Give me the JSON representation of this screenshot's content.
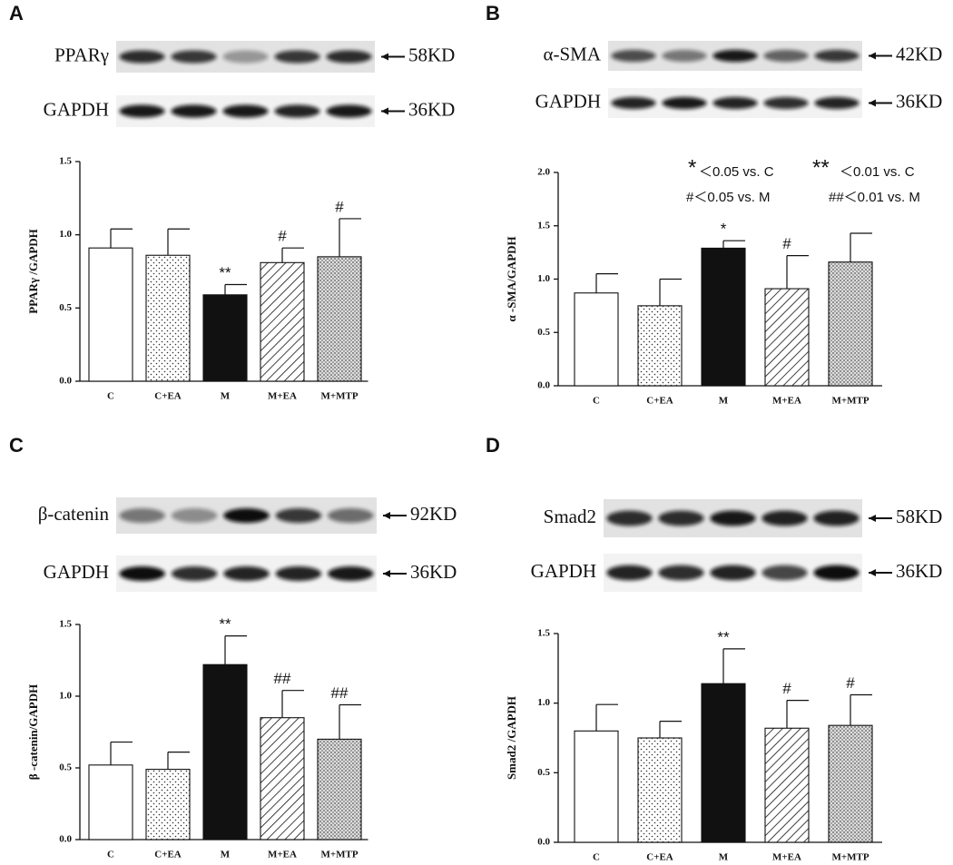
{
  "chart_data": [
    {
      "type": "bar",
      "panel_label": "A",
      "blots": [
        {
          "protein": "PPARγ",
          "size": "58KD"
        },
        {
          "protein": "GAPDH",
          "size": "36KD"
        }
      ],
      "y_label": "PPARγ /GAPDH",
      "categories": [
        "C",
        "C+EA",
        "M",
        "M+EA",
        "M+MTP"
      ],
      "values": [
        0.91,
        0.86,
        0.59,
        0.81,
        0.85
      ],
      "errors": [
        0.13,
        0.18,
        0.07,
        0.1,
        0.26
      ],
      "annotations": [
        null,
        null,
        "**",
        "#",
        "#"
      ],
      "fills": [
        "white",
        "dotted",
        "black",
        "hatched",
        "stippled"
      ],
      "ylim": [
        0,
        1.5
      ],
      "yticks": [
        {
          "value": 0,
          "label": "0.0"
        },
        0.5,
        {
          "value": 1,
          "label": "1.0"
        },
        1.5
      ]
    },
    {
      "type": "bar",
      "panel_label": "B",
      "blots": [
        {
          "protein": "α-SMA",
          "size": "42KD"
        },
        {
          "protein": "GAPDH",
          "size": "36KD"
        }
      ],
      "y_label": "α -SMA/GAPDH",
      "categories": [
        "C",
        "C+EA",
        "M",
        "M+EA",
        "M+MTP"
      ],
      "values": [
        0.87,
        0.75,
        1.29,
        0.91,
        1.16
      ],
      "errors": [
        0.18,
        0.25,
        0.07,
        0.31,
        0.27
      ],
      "annotations": [
        null,
        null,
        "*",
        "#",
        null
      ],
      "fills": [
        "white",
        "dotted",
        "black",
        "hatched",
        "stippled"
      ],
      "notes": [
        "*",
        "＜0.05 vs. C",
        "**",
        "＜0.01 vs. C",
        "#＜0.05 vs. M",
        "##＜0.01 vs. M"
      ],
      "ylim": [
        0,
        2
      ],
      "yticks": [
        {
          "value": 0,
          "label": "0.0"
        },
        0.5,
        {
          "value": 1,
          "label": "1.0"
        },
        1.5,
        {
          "value": 2,
          "label": "2.0"
        }
      ]
    },
    {
      "type": "bar",
      "panel_label": "C",
      "blots": [
        {
          "protein": "β-catenin",
          "size": "92KD"
        },
        {
          "protein": "GAPDH",
          "size": "36KD"
        }
      ],
      "y_label": "β -catenin/GAPDH",
      "categories": [
        "C",
        "C+EA",
        "M",
        "M+EA",
        "M+MTP"
      ],
      "values": [
        0.52,
        0.49,
        1.22,
        0.85,
        0.7
      ],
      "errors": [
        0.16,
        0.12,
        0.2,
        0.19,
        0.24
      ],
      "annotations": [
        null,
        null,
        "**",
        "##",
        "##"
      ],
      "fills": [
        "white",
        "dotted",
        "black",
        "hatched",
        "stippled"
      ],
      "ylim": [
        0,
        1.5
      ],
      "yticks": [
        {
          "value": 0,
          "label": "0.0"
        },
        0.5,
        {
          "value": 1,
          "label": "1.0"
        },
        1.5
      ]
    },
    {
      "type": "bar",
      "panel_label": "D",
      "blots": [
        {
          "protein": "Smad2",
          "size": "58KD"
        },
        {
          "protein": "GAPDH",
          "size": "36KD"
        }
      ],
      "y_label": "Smad2 /GAPDH",
      "categories": [
        "C",
        "C+EA",
        "M",
        "M+EA",
        "M+MTP"
      ],
      "values": [
        0.8,
        0.75,
        1.14,
        0.82,
        0.84
      ],
      "errors": [
        0.19,
        0.12,
        0.25,
        0.2,
        0.22
      ],
      "annotations": [
        null,
        null,
        "**",
        "#",
        "#"
      ],
      "fills": [
        "white",
        "dotted",
        "black",
        "hatched",
        "stippled"
      ],
      "ylim": [
        0,
        1.5
      ],
      "yticks": [
        {
          "value": 0,
          "label": "0.0"
        },
        0.5,
        {
          "value": 1,
          "label": "1.0"
        },
        1.5
      ]
    }
  ]
}
